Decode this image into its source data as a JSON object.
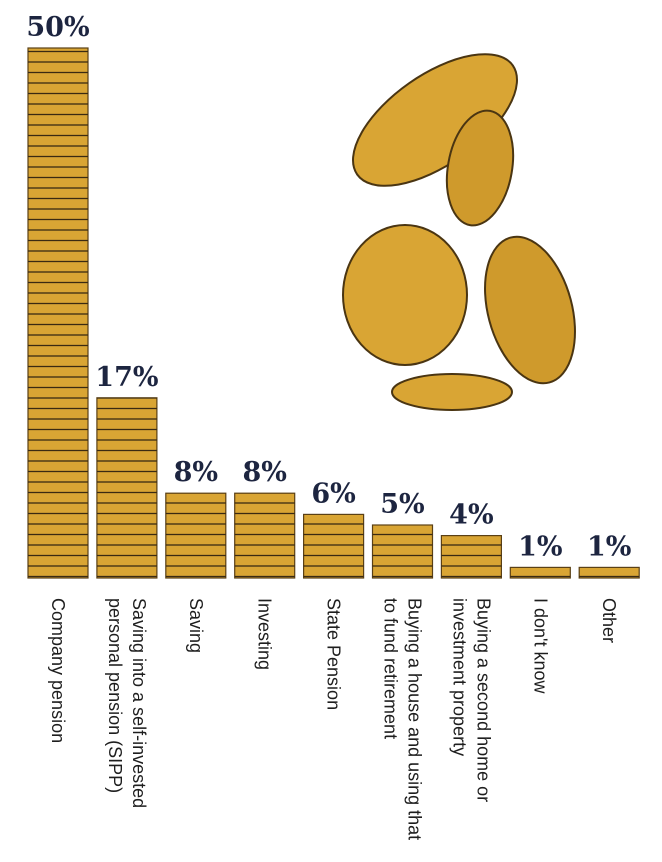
{
  "chart_data": {
    "type": "bar",
    "categories": [
      "Company pension",
      "Saving into a self-invested personal pension (SIPP)",
      "Saving",
      "Investing",
      "State Pension",
      "Buying a house and using that to fund retirement",
      "Buying a second home or investment property",
      "I don't know",
      "Other"
    ],
    "values": [
      50,
      17,
      8,
      8,
      6,
      5,
      4,
      1,
      1
    ],
    "value_labels": [
      "50%",
      "17%",
      "8%",
      "8%",
      "6%",
      "5%",
      "4%",
      "1%",
      "1%"
    ],
    "color": "#d9a534"
  }
}
